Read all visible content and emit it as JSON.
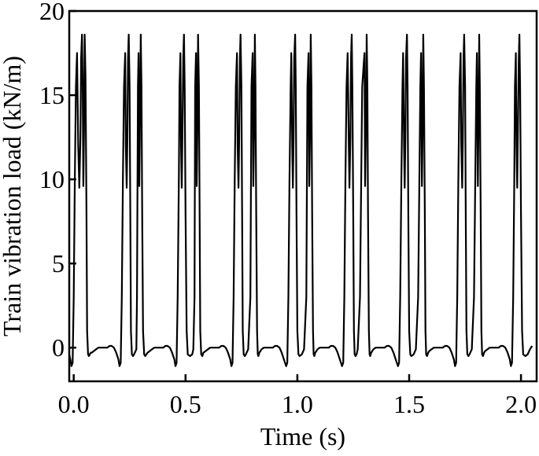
{
  "chart_data": {
    "type": "line",
    "title": "",
    "xlabel": "Time (s)",
    "ylabel": "Train vibration load (kN/m)",
    "xlim": [
      -0.02,
      2.07
    ],
    "ylim": [
      -2.0,
      20.0
    ],
    "xticks": [
      0.0,
      0.5,
      1.0,
      1.5,
      2.0
    ],
    "xtick_labels": [
      "0.0",
      "0.5",
      "1.0",
      "1.5",
      "2.0"
    ],
    "yticks": [
      0,
      5,
      10,
      15,
      20
    ],
    "ytick_labels": [
      "0",
      "5",
      "10",
      "15",
      "20"
    ],
    "grid": false,
    "legend": "none",
    "line_color": "#000000",
    "series": [
      {
        "x": [
          -0.02,
          -0.015,
          -0.01,
          -0.005,
          0.0,
          0.005,
          0.01,
          0.015,
          0.02,
          0.025,
          0.03,
          0.033,
          0.037,
          0.04,
          0.043,
          0.046,
          0.049,
          0.053,
          0.057,
          0.06,
          0.064,
          0.068,
          0.072,
          0.076,
          0.08,
          0.09,
          0.1,
          0.11,
          0.12,
          0.13,
          0.14,
          0.15,
          0.16,
          0.17,
          0.18,
          0.19,
          0.2,
          0.205,
          0.21,
          0.215,
          0.22,
          0.225,
          0.23,
          0.233,
          0.237,
          0.24,
          0.243,
          0.246,
          0.25,
          0.253,
          0.256,
          0.26,
          0.265,
          0.27,
          0.28,
          0.283,
          0.287,
          0.29,
          0.293,
          0.296,
          0.3,
          0.303,
          0.306,
          0.31,
          0.315,
          0.32,
          0.33,
          0.34,
          0.35,
          0.36,
          0.37,
          0.38,
          0.39,
          0.4,
          0.41,
          0.42,
          0.43,
          0.44,
          0.45,
          0.455,
          0.46,
          0.465,
          0.47,
          0.473,
          0.477,
          0.48,
          0.483,
          0.486,
          0.49,
          0.493,
          0.496,
          0.5,
          0.505,
          0.51,
          0.52,
          0.53,
          0.535,
          0.54,
          0.543,
          0.547,
          0.55,
          0.553,
          0.556,
          0.56,
          0.563,
          0.566,
          0.57,
          0.575,
          0.58,
          0.59,
          0.6,
          0.61,
          0.62,
          0.63,
          0.64,
          0.65,
          0.66,
          0.67,
          0.68,
          0.69,
          0.7,
          0.705,
          0.71,
          0.715,
          0.72,
          0.725,
          0.73,
          0.733,
          0.737,
          0.74,
          0.743,
          0.746,
          0.75,
          0.753,
          0.756,
          0.76,
          0.765,
          0.77,
          0.78,
          0.79,
          0.795,
          0.8,
          0.803,
          0.807,
          0.81,
          0.813,
          0.816,
          0.82,
          0.823,
          0.826,
          0.83,
          0.835,
          0.84,
          0.85,
          0.86,
          0.87,
          0.88,
          0.89,
          0.9,
          0.91,
          0.92,
          0.93,
          0.94,
          0.95,
          0.955,
          0.96,
          0.965,
          0.97,
          0.973,
          0.977,
          0.98,
          0.983,
          0.986,
          0.99,
          0.993,
          0.996,
          1.0,
          1.005,
          1.01,
          1.02,
          1.03,
          1.04,
          1.045,
          1.05,
          1.053,
          1.057,
          1.06,
          1.063,
          1.066,
          1.07,
          1.073,
          1.076,
          1.08,
          1.085,
          1.09,
          1.1,
          1.11,
          1.12,
          1.13,
          1.14,
          1.15,
          1.16,
          1.17,
          1.18,
          1.19,
          1.2,
          1.205,
          1.21,
          1.215,
          1.22,
          1.225,
          1.23,
          1.233,
          1.237,
          1.24,
          1.243,
          1.246,
          1.25,
          1.253,
          1.256,
          1.26,
          1.265,
          1.27,
          1.28,
          1.29,
          1.3,
          1.303,
          1.307,
          1.31,
          1.313,
          1.316,
          1.32,
          1.323,
          1.326,
          1.33,
          1.335,
          1.34,
          1.35,
          1.36,
          1.37,
          1.38,
          1.39,
          1.4,
          1.41,
          1.42,
          1.43,
          1.44,
          1.45,
          1.455,
          1.46,
          1.465,
          1.47,
          1.473,
          1.477,
          1.48,
          1.483,
          1.486,
          1.49,
          1.493,
          1.496,
          1.5,
          1.505,
          1.51,
          1.52,
          1.53,
          1.54,
          1.55,
          1.553,
          1.557,
          1.56,
          1.563,
          1.566,
          1.57,
          1.573,
          1.576,
          1.58,
          1.585,
          1.59,
          1.6,
          1.61,
          1.62,
          1.63,
          1.64,
          1.65,
          1.66,
          1.67,
          1.68,
          1.69,
          1.7,
          1.705,
          1.71,
          1.715,
          1.72,
          1.725,
          1.73,
          1.733,
          1.737,
          1.74,
          1.743,
          1.746,
          1.75,
          1.753,
          1.756,
          1.76,
          1.765,
          1.77,
          1.78,
          1.79,
          1.8,
          1.803,
          1.807,
          1.81,
          1.813,
          1.816,
          1.82,
          1.823,
          1.826,
          1.83,
          1.835,
          1.84,
          1.85,
          1.86,
          1.87,
          1.88,
          1.89,
          1.9,
          1.91,
          1.92,
          1.93,
          1.94,
          1.95,
          1.955,
          1.96,
          1.965,
          1.97,
          1.973,
          1.977,
          1.98,
          1.983,
          1.986,
          1.99,
          1.993,
          1.996,
          2.0,
          2.005,
          2.01,
          2.02,
          2.03,
          2.04,
          2.05
        ],
        "y": [
          -0.4,
          -0.7,
          -1.1,
          -0.9,
          3.0,
          10.0,
          15.5,
          17.5,
          12.0,
          9.5,
          12.5,
          17.2,
          18.6,
          15.5,
          9.6,
          13.0,
          18.6,
          16.0,
          8.0,
          1.0,
          -0.4,
          -0.5,
          -0.4,
          -0.3,
          -0.3,
          -0.2,
          -0.1,
          0.0,
          0.0,
          0.0,
          0.0,
          0.0,
          0.1,
          0.1,
          0.0,
          -0.3,
          -0.7,
          -1.1,
          -0.9,
          3.0,
          10.0,
          15.5,
          17.5,
          12.0,
          9.5,
          12.5,
          17.2,
          18.6,
          15.5,
          8.0,
          1.0,
          -0.4,
          -0.5,
          -0.4,
          -0.1,
          3.0,
          15.5,
          17.5,
          9.6,
          13.0,
          18.6,
          15.5,
          8.0,
          1.0,
          -0.4,
          -0.5,
          -0.3,
          -0.2,
          -0.1,
          0.0,
          0.0,
          0.0,
          0.0,
          0.0,
          0.1,
          0.1,
          0.0,
          -0.3,
          -0.7,
          -1.1,
          -0.9,
          3.0,
          10.0,
          15.5,
          17.5,
          12.0,
          9.5,
          12.5,
          17.2,
          18.6,
          15.5,
          8.0,
          1.0,
          -0.4,
          -0.5,
          -0.4,
          -0.1,
          3.0,
          15.5,
          17.5,
          9.6,
          13.0,
          18.6,
          15.5,
          8.0,
          1.0,
          -0.4,
          -0.5,
          -0.3,
          -0.2,
          -0.1,
          0.0,
          0.0,
          0.0,
          0.0,
          0.0,
          0.1,
          0.1,
          0.0,
          -0.3,
          -0.7,
          -1.1,
          -0.9,
          3.0,
          10.0,
          15.5,
          17.5,
          12.0,
          9.5,
          12.5,
          17.2,
          18.6,
          15.5,
          8.0,
          1.0,
          -0.4,
          -0.5,
          -0.4,
          -0.1,
          3.0,
          15.5,
          17.5,
          9.6,
          13.0,
          18.6,
          15.5,
          8.0,
          1.0,
          -0.4,
          -0.5,
          -0.3,
          -0.2,
          -0.1,
          0.0,
          0.0,
          0.0,
          0.0,
          0.0,
          0.1,
          0.1,
          0.0,
          -0.3,
          -0.7,
          -1.1,
          -0.9,
          3.0,
          10.0,
          15.5,
          17.5,
          12.0,
          9.5,
          12.5,
          17.2,
          18.6,
          15.5,
          8.0,
          1.0,
          -0.4,
          -0.5,
          -0.4,
          -0.1,
          3.0,
          15.5,
          17.5,
          9.6,
          13.0,
          18.6,
          15.5,
          8.0,
          1.0,
          -0.4,
          -0.5,
          -0.3,
          -0.2,
          -0.1,
          0.0,
          0.0,
          0.0,
          0.0,
          0.0,
          0.1,
          0.1,
          0.0,
          -0.3,
          -0.7,
          -1.1,
          -0.9,
          3.0,
          10.0,
          15.5,
          17.5,
          12.0,
          9.5,
          12.5,
          17.2,
          18.6,
          15.5,
          8.0,
          1.0,
          -0.4,
          -0.5,
          -0.4,
          -0.1,
          3.0,
          15.5,
          17.5,
          9.6,
          13.0,
          18.6,
          15.5,
          8.0,
          1.0,
          -0.4,
          -0.5,
          -0.3,
          -0.2,
          -0.1,
          0.0,
          0.0,
          0.0,
          0.0,
          0.0,
          0.1,
          0.1,
          0.0,
          -0.3,
          -0.7,
          -1.1,
          -0.9,
          3.0,
          10.0,
          15.5,
          17.5,
          12.0,
          9.5,
          12.5,
          17.2,
          18.6,
          15.5,
          8.0,
          1.0,
          -0.4,
          -0.5,
          -0.4,
          -0.1,
          3.0,
          15.5,
          17.5,
          9.6,
          13.0,
          18.6,
          15.5,
          8.0,
          1.0,
          -0.4,
          -0.5,
          -0.3,
          -0.2,
          -0.1,
          0.0,
          0.0,
          0.0,
          0.0,
          0.0,
          0.1,
          0.1,
          0.0,
          -0.3,
          -0.7,
          -1.1,
          -0.9,
          3.0,
          10.0,
          15.5,
          17.5,
          12.0,
          9.5,
          12.5,
          17.2,
          18.6,
          15.5,
          8.0,
          1.0,
          -0.4,
          -0.5,
          -0.4,
          -0.1,
          3.0,
          15.5,
          17.5,
          9.6,
          13.0,
          18.6,
          15.5,
          8.0,
          1.0,
          -0.4,
          -0.5,
          -0.3,
          -0.2,
          -0.1,
          0.0,
          0.0,
          0.0,
          0.0,
          0.0,
          0.1,
          0.1,
          0.0,
          -0.3,
          -0.7,
          -1.1,
          -0.9,
          3.0,
          10.0,
          15.5,
          17.5,
          12.0,
          9.5,
          12.5,
          17.2,
          18.6,
          15.5,
          8.0,
          1.0,
          -0.4,
          -0.5,
          -0.4,
          -0.1,
          0.1
        ]
      }
    ]
  }
}
